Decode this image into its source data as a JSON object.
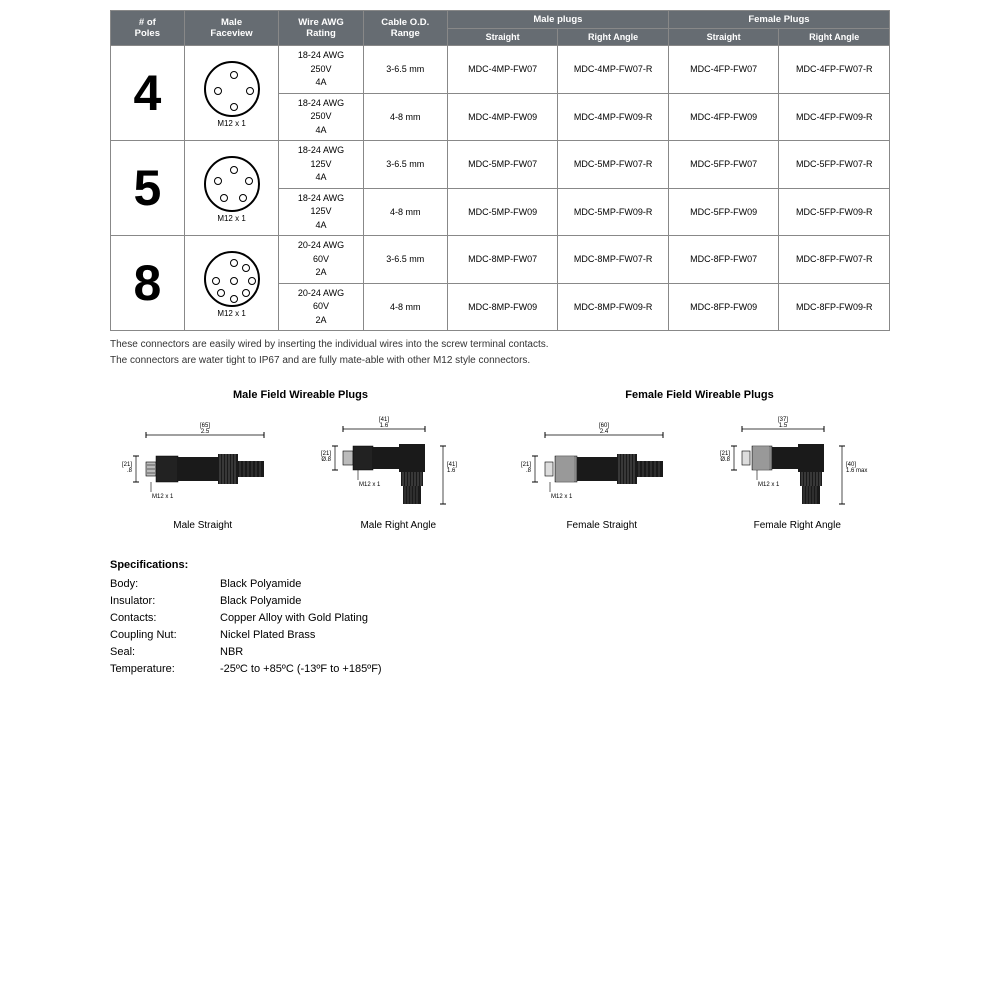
{
  "table": {
    "headers": {
      "poles": "# of\nPoles",
      "faceview": "Male\nFaceview",
      "awg": "Wire AWG\nRating",
      "od": "Cable O.D.\nRange",
      "male_plugs": "Male plugs",
      "female_plugs": "Female Plugs",
      "straight": "Straight",
      "right_angle": "Right Angle"
    },
    "groups": [
      {
        "poles": "4",
        "thread": "M12 x 1",
        "pins": 4,
        "rows": [
          {
            "awg": "18-24 AWG",
            "volt": "250V",
            "amp": "4A",
            "od": "3-6.5 mm",
            "ms": "MDC-4MP-FW07",
            "mr": "MDC-4MP-FW07-R",
            "fs": "MDC-4FP-FW07",
            "fr": "MDC-4FP-FW07-R"
          },
          {
            "awg": "18-24 AWG",
            "volt": "250V",
            "amp": "4A",
            "od": "4-8 mm",
            "ms": "MDC-4MP-FW09",
            "mr": "MDC-4MP-FW09-R",
            "fs": "MDC-4FP-FW09",
            "fr": "MDC-4FP-FW09-R"
          }
        ]
      },
      {
        "poles": "5",
        "thread": "M12 x 1",
        "pins": 5,
        "rows": [
          {
            "awg": "18-24 AWG",
            "volt": "125V",
            "amp": "4A",
            "od": "3-6.5 mm",
            "ms": "MDC-5MP-FW07",
            "mr": "MDC-5MP-FW07-R",
            "fs": "MDC-5FP-FW07",
            "fr": "MDC-5FP-FW07-R"
          },
          {
            "awg": "18-24 AWG",
            "volt": "125V",
            "amp": "4A",
            "od": "4-8 mm",
            "ms": "MDC-5MP-FW09",
            "mr": "MDC-5MP-FW09-R",
            "fs": "MDC-5FP-FW09",
            "fr": "MDC-5FP-FW09-R"
          }
        ]
      },
      {
        "poles": "8",
        "thread": "M12 x 1",
        "pins": 8,
        "rows": [
          {
            "awg": "20-24 AWG",
            "volt": "60V",
            "amp": "2A",
            "od": "3-6.5 mm",
            "ms": "MDC-8MP-FW07",
            "mr": "MDC-8MP-FW07-R",
            "fs": "MDC-8FP-FW07",
            "fr": "MDC-8FP-FW07-R"
          },
          {
            "awg": "20-24 AWG",
            "volt": "60V",
            "amp": "2A",
            "od": "4-8 mm",
            "ms": "MDC-8MP-FW09",
            "mr": "MDC-8MP-FW09-R",
            "fs": "MDC-8FP-FW09",
            "fr": "MDC-8FP-FW09-R"
          }
        ]
      }
    ]
  },
  "notes": {
    "line1": "These connectors are easily wired by inserting the individual wires into the screw terminal contacts.",
    "line2": "The connectors are water tight to IP67 and are fully mate-able with other M12 style connectors."
  },
  "diagrams": {
    "male_title": "Male Field Wireable Plugs",
    "female_title": "Female Field Wireable Plugs",
    "captions": {
      "ms": "Male Straight",
      "mr": "Male Right Angle",
      "fs": "Female Straight",
      "fr": "Female Right Angle"
    },
    "dims": {
      "ms_len": "[65]\n2.5",
      "ms_dia": "[21]\n.8",
      "ms_thread": "M12 x 1",
      "mr_len": "[41]\n1.6",
      "mr_dia": "[21]\nØ.8",
      "mr_h": "[41]\n1.6",
      "mr_thread": "M12 x 1",
      "fs_len": "[60]\n2.4",
      "fs_dia": "[21]\n.8",
      "fs_thread": "M12 x 1",
      "fr_len": "[37]\n1.5",
      "fr_dia": "[21]\nØ.8",
      "fr_h": "[40]\n1.6 max",
      "fr_thread": "M12 x 1"
    },
    "colors": {
      "body": "#1a1a1a",
      "knurl": "#555555",
      "line": "#000000",
      "dim": "#000000"
    }
  },
  "specs": {
    "title": "Specifications:",
    "rows": [
      {
        "k": "Body:",
        "v": "Black Polyamide"
      },
      {
        "k": "Insulator:",
        "v": "Black Polyamide"
      },
      {
        "k": "Contacts:",
        "v": "Copper Alloy with Gold Plating"
      },
      {
        "k": "Coupling Nut:",
        "v": "Nickel Plated Brass"
      },
      {
        "k": "Seal:",
        "v": "NBR"
      },
      {
        "k": "Temperature:",
        "v": "-25ºC to +85ºC (-13ºF to +185ºF)"
      }
    ]
  }
}
